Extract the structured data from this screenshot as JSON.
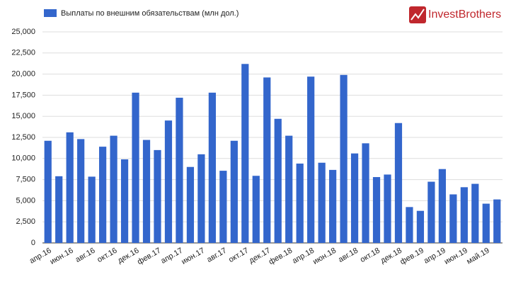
{
  "logo": "InvestBrothers",
  "chart_data": {
    "type": "bar",
    "legend": "top-left",
    "grid": true,
    "color": "#3366cc",
    "series": [
      {
        "name": "Выплаты по внешним обязательствам (млн дол.)",
        "color": "#3366cc",
        "values": [
          12100,
          7900,
          13100,
          12300,
          7850,
          11400,
          12700,
          9900,
          17800,
          12200,
          11000,
          14500,
          17200,
          9000,
          10500,
          17800,
          8550,
          12100,
          21200,
          7950,
          19600,
          14700,
          12700,
          9400,
          19700,
          9500,
          8650,
          19900,
          10600,
          11800,
          7800,
          8100,
          14200,
          4250,
          3800,
          7250,
          8750,
          5750,
          6600,
          7000,
          4650,
          5150
        ]
      }
    ],
    "categories": [
      "апр.16",
      null,
      "июн.16",
      null,
      "авг.16",
      null,
      "окт.16",
      null,
      "дек.16",
      null,
      "фев.17",
      null,
      "апр.17",
      null,
      "июн.17",
      null,
      "авг.17",
      null,
      "окт.17",
      null,
      "дек.17",
      null,
      "фев.18",
      null,
      "апр.18",
      null,
      "июн.18",
      null,
      "авг.18",
      null,
      "окт.18",
      null,
      "дек.18",
      null,
      "фев.19",
      null,
      "апр.19",
      null,
      "июн.19",
      null,
      "май.19",
      null
    ],
    "ylim": [
      0,
      25000
    ],
    "yticks": [
      0,
      {
        "value": 2500,
        "label": "2,500"
      },
      {
        "value": 5000,
        "label": "5,000"
      },
      {
        "value": 7500,
        "label": "7,500"
      },
      {
        "value": 10000,
        "label": "10,000"
      },
      {
        "value": 12500,
        "label": "12,500"
      },
      {
        "value": 15000,
        "label": "15,000"
      },
      {
        "value": 17500,
        "label": "17,500"
      },
      {
        "value": 20000,
        "label": "20,000"
      },
      {
        "value": 22500,
        "label": "22,500"
      },
      {
        "value": 25000,
        "label": "25,000"
      }
    ]
  }
}
